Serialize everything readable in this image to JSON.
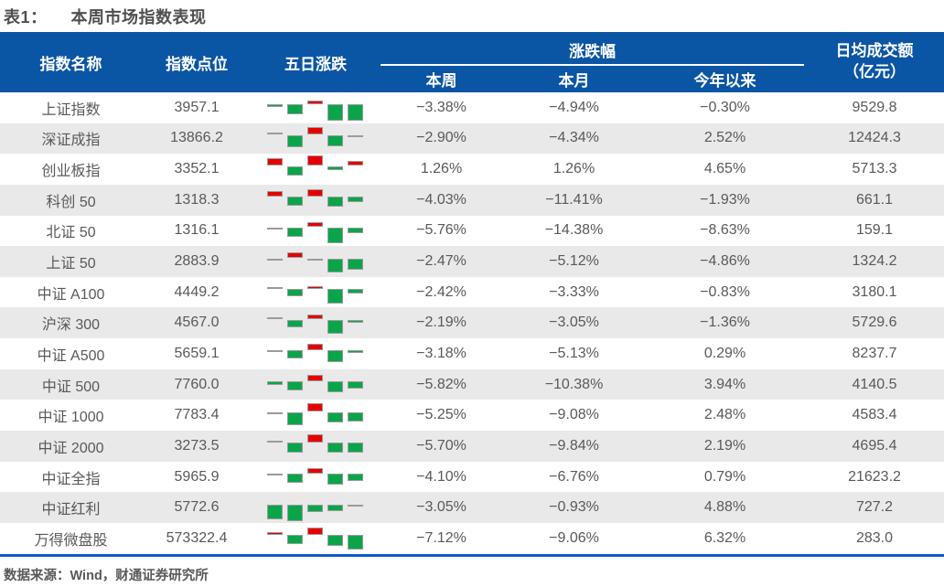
{
  "title": {
    "label": "表1：",
    "text": "本周市场指数表现"
  },
  "source": "数据来源：Wind，财通证券研究所",
  "colors": {
    "header_bg": "#0B55A5",
    "row_alt": "#E9E9E9",
    "body_text": "#595959",
    "title_text": "#4F4F4F",
    "up_red": "#E60000",
    "down_green": "#0AA54A",
    "rule_blue": "#0E59C8"
  },
  "table": {
    "headers": {
      "name": "指数名称",
      "points": "指数点位",
      "five_day": "五日涨跌",
      "change_group": "涨跌幅",
      "week": "本周",
      "month": "本月",
      "ytd": "今年以来",
      "turnover_line1": "日均成交额",
      "turnover_line2": "（亿元）"
    },
    "rows": [
      {
        "name": "上证指数",
        "points": "3957.1",
        "spark": [
          -3,
          -11,
          4,
          -18,
          -18
        ],
        "week": "−3.38%",
        "month": "−4.94%",
        "ytd": "−0.30%",
        "turnover": "9529.8"
      },
      {
        "name": "深证成指",
        "points": "13866.2",
        "spark": [
          2,
          -13,
          8,
          -12,
          -2
        ],
        "week": "−2.90%",
        "month": "−4.34%",
        "ytd": "2.52%",
        "turnover": "12424.3"
      },
      {
        "name": "创业板指",
        "points": "3352.1",
        "spark": [
          8,
          -10,
          11,
          -4,
          5
        ],
        "week": "1.26%",
        "month": "1.26%",
        "ytd": "4.65%",
        "turnover": "5713.3"
      },
      {
        "name": "科创 50",
        "points": "1318.3",
        "spark": [
          6,
          -10,
          8,
          -11,
          -6
        ],
        "week": "−4.03%",
        "month": "−11.41%",
        "ytd": "−1.93%",
        "turnover": "661.1"
      },
      {
        "name": "北证 50",
        "points": "1316.1",
        "spark": [
          -2,
          -10,
          5,
          -17,
          -6
        ],
        "week": "−5.76%",
        "month": "−14.38%",
        "ytd": "−8.63%",
        "turnover": "159.1"
      },
      {
        "name": "上证 50",
        "points": "2883.9",
        "spark": [
          -2,
          6,
          -2,
          -15,
          -12
        ],
        "week": "−2.47%",
        "month": "−5.12%",
        "ytd": "−4.86%",
        "turnover": "1324.2"
      },
      {
        "name": "中证 A100",
        "points": "4449.2",
        "spark": [
          2,
          -8,
          3,
          -16,
          -5
        ],
        "week": "−2.42%",
        "month": "−3.33%",
        "ytd": "−0.83%",
        "turnover": "3180.1"
      },
      {
        "name": "沪深 300",
        "points": "4567.0",
        "spark": [
          2,
          -8,
          5,
          -15,
          -3
        ],
        "week": "−2.19%",
        "month": "−3.05%",
        "ytd": "−1.36%",
        "turnover": "5729.6"
      },
      {
        "name": "中证 A500",
        "points": "5659.1",
        "spark": [
          -2,
          -9,
          7,
          -13,
          -3
        ],
        "week": "−3.18%",
        "month": "−5.13%",
        "ytd": "0.29%",
        "turnover": "8237.7"
      },
      {
        "name": "中证 500",
        "points": "7760.0",
        "spark": [
          -4,
          -10,
          7,
          -12,
          -8
        ],
        "week": "−5.82%",
        "month": "−10.38%",
        "ytd": "3.94%",
        "turnover": "4140.5"
      },
      {
        "name": "中证 1000",
        "points": "7783.4",
        "spark": [
          -2,
          -14,
          9,
          -11,
          -10
        ],
        "week": "−5.25%",
        "month": "−9.08%",
        "ytd": "2.48%",
        "turnover": "4583.4"
      },
      {
        "name": "中证 2000",
        "points": "3273.5",
        "spark": [
          2,
          -11,
          9,
          -11,
          -11
        ],
        "week": "−5.70%",
        "month": "−9.84%",
        "ytd": "2.19%",
        "turnover": "4695.4"
      },
      {
        "name": "中证全指",
        "points": "5965.9",
        "spark": [
          -2,
          -10,
          6,
          -12,
          -8
        ],
        "week": "−4.10%",
        "month": "−6.76%",
        "ytd": "0.79%",
        "turnover": "21623.2"
      },
      {
        "name": "中证红利",
        "points": "5772.6",
        "spark": [
          -16,
          -18,
          -8,
          -7,
          -2
        ],
        "week": "−3.05%",
        "month": "−0.93%",
        "ytd": "4.88%",
        "turnover": "727.2"
      },
      {
        "name": "万得微盘股",
        "points": "573322.4",
        "spark": [
          3,
          -10,
          8,
          -12,
          -16
        ],
        "week": "−7.12%",
        "month": "−9.06%",
        "ytd": "6.32%",
        "turnover": "283.0"
      }
    ]
  }
}
